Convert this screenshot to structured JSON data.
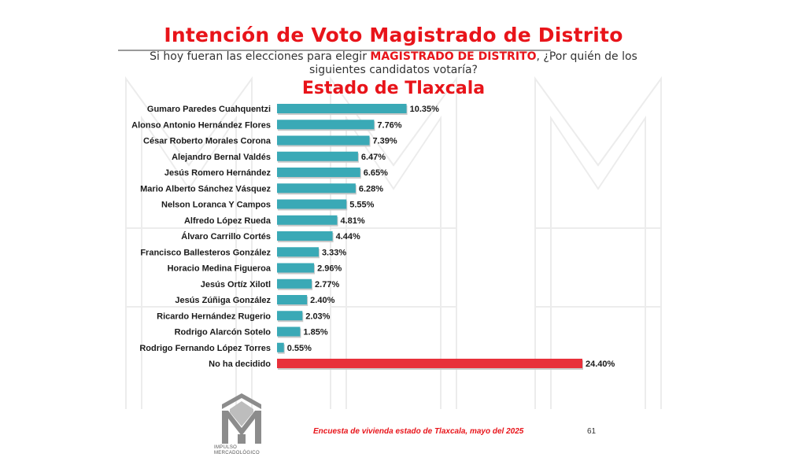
{
  "title": "Intención de Voto Magistrado de Distrito",
  "question": {
    "before": "Si hoy fueran las elecciones para elegir ",
    "highlight": "MAGISTRADO DE DISTRITO",
    "after": ", ¿Por quién de los siguientes candidatos votaría?"
  },
  "subtitle": "Estado de Tlaxcala",
  "footer": "Encuesta de vivienda estado de Tlaxcala, mayo  del 2025",
  "page_number": "61",
  "logo": {
    "line1": "IMPULSO",
    "line2": "MERCADOLÓGICO"
  },
  "colors": {
    "title": "#e8141a",
    "bar": "#3aa9b6",
    "bar_highlight": "#e8303a"
  },
  "chart_data": {
    "type": "bar",
    "orientation": "horizontal",
    "categories": [
      "Gumaro Paredes Cuahquentzi",
      "Alonso Antonio Hernández Flores",
      "César Roberto Morales Corona",
      "Alejandro Bernal Valdés",
      "Jesús Romero Hernández",
      "Mario Alberto Sánchez Vásquez",
      "Nelson Loranca Y Campos",
      "Alfredo López Rueda",
      "Álvaro Carrillo Cortés",
      "Francisco Ballesteros González",
      "Horacio Medina Figueroa",
      "Jesús Ortíz Xilotl",
      "Jesús Zúñiga González",
      "Ricardo Hernández Rugerio",
      "Rodrigo Alarcón Sotelo",
      "Rodrigo Fernando López Torres",
      "No ha decidido"
    ],
    "values": [
      10.35,
      7.76,
      7.39,
      6.47,
      6.65,
      6.28,
      5.55,
      4.81,
      4.44,
      3.33,
      2.96,
      2.77,
      2.4,
      2.03,
      1.85,
      0.55,
      24.4
    ],
    "value_labels": [
      "10.35%",
      "7.76%",
      "7.39%",
      "6.47%",
      "6.65%",
      "6.28%",
      "5.55%",
      "4.81%",
      "4.44%",
      "3.33%",
      "2.96%",
      "2.77%",
      "2.40%",
      "2.03%",
      "1.85%",
      "0.55%",
      "24.40%"
    ],
    "highlight_index": 16,
    "xlim": [
      0,
      24.4
    ],
    "grid": false
  }
}
